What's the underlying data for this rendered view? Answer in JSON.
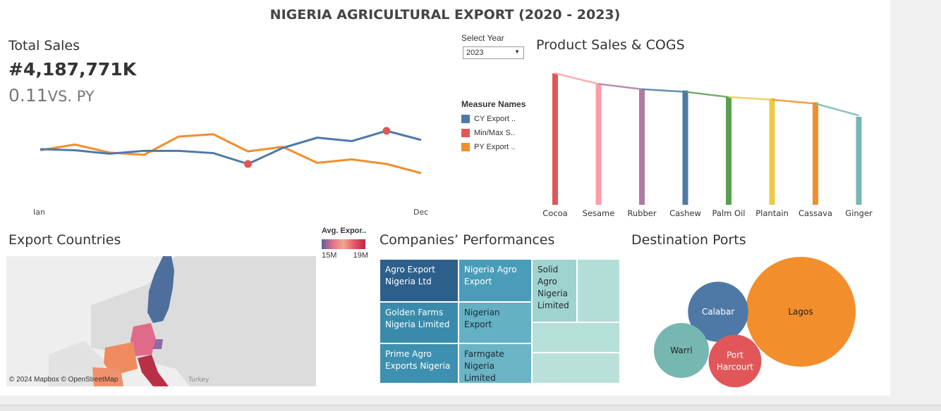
{
  "dashboard": {
    "title": "NIGERIA AGRICULTURAL EXPORT (2020 - 2023)"
  },
  "kpi": {
    "title": "Total Sales",
    "value": "#4,187,771K",
    "delta_value": "0.11",
    "delta_label": "VS. PY"
  },
  "year_filter": {
    "label": "Select Year",
    "selected": "2023"
  },
  "measure_legend": {
    "title": "Measure Names",
    "items": [
      {
        "label": "CY Export ..",
        "color": "#4e79a7"
      },
      {
        "label": "Min/Max S..",
        "color": "#e15759"
      },
      {
        "label": "PY Export ..",
        "color": "#f28e2b"
      }
    ]
  },
  "map_legend": {
    "title": "Avg. Expor..",
    "min_label": "15M",
    "max_label": "19M"
  },
  "sections": {
    "product_sales": "Product Sales & COGS",
    "export_countries": "Export Countries",
    "companies": "Companies’ Performances",
    "ports": "Destination Ports"
  },
  "map": {
    "attribution": "© 2024 Mapbox © OpenStreetMap",
    "label_turkey": "Turkey"
  },
  "chart_data": [
    {
      "type": "line",
      "x_labels": [
        "Jan",
        "Dec"
      ],
      "x": [
        1,
        2,
        3,
        4,
        5,
        6,
        7,
        8,
        9,
        10,
        11,
        12
      ],
      "series": [
        {
          "name": "CY Export ..",
          "color": "#4e79a7",
          "values": [
            4.5,
            4.4,
            4.1,
            4.35,
            4.35,
            4.15,
            3.2,
            4.6,
            5.5,
            5.2,
            6.1,
            5.3
          ]
        },
        {
          "name": "PY Export ..",
          "color": "#f28e2b",
          "values": [
            4.4,
            4.9,
            4.2,
            4.0,
            5.6,
            5.8,
            4.3,
            4.7,
            3.3,
            3.6,
            3.2,
            2.4
          ]
        }
      ],
      "min_max_points": [
        {
          "x": 7,
          "value": 3.2
        },
        {
          "x": 11,
          "value": 6.1
        }
      ],
      "ylim": [
        0,
        8
      ]
    },
    {
      "type": "bar",
      "categories": [
        "Cocoa",
        "Sesame",
        "Rubber",
        "Cashew",
        "Palm Oil",
        "Plantain",
        "Cassava",
        "Ginger"
      ],
      "values": [
        100,
        92,
        88,
        87,
        82,
        81,
        78,
        67
      ],
      "line_values": [
        100,
        92,
        88,
        86,
        82,
        80,
        77,
        68
      ],
      "colors": [
        "#e15759",
        "#ff9da7",
        "#b07aa1",
        "#4e79a7",
        "#59a14f",
        "#edc948",
        "#f28e2b",
        "#76b7b2"
      ],
      "ylim": [
        0,
        105
      ]
    },
    {
      "type": "table",
      "title": "Companies’ Performances",
      "items": [
        {
          "name": "Agro Export Nigeria Ltd",
          "label_lines": [
            "Agro Export",
            "Nigeria Ltd"
          ],
          "color": "#2d5f8b",
          "text_color": "#ffffff"
        },
        {
          "name": "Golden Farms Nigeria Limited",
          "label_lines": [
            "Golden Farms",
            "Nigeria Limited"
          ],
          "color": "#3a8bab",
          "text_color": "#ffffff"
        },
        {
          "name": "Prime Agro Exports Nigeria",
          "label_lines": [
            "Prime Agro",
            "Exports Nigeria"
          ],
          "color": "#3d90b0",
          "text_color": "#ffffff"
        },
        {
          "name": "Nigeria Agro Export",
          "label_lines": [
            "Nigeria Agro",
            "Export"
          ],
          "color": "#4a9cb8",
          "text_color": "#ffffff"
        },
        {
          "name": "Nigerian Export",
          "label_lines": [
            "Nigerian",
            "Export"
          ],
          "color": "#64b1c4",
          "text_color": "#1d2a33"
        },
        {
          "name": "Farmgate Nigeria Limited",
          "label_lines": [
            "Farmgate",
            "Nigeria Limited"
          ],
          "color": "#6ab4c5",
          "text_color": "#1d2a33"
        },
        {
          "name": "Solid Agro Nigeria Limited",
          "label_lines": [
            "Solid",
            "Agro",
            "Nigeria",
            "Limited"
          ],
          "color": "#9fd3cf",
          "text_color": "#1d2a33"
        },
        {
          "name": "",
          "label_lines": [],
          "color": "#b3ded7",
          "text_color": "#1d2a33"
        },
        {
          "name": "",
          "label_lines": [],
          "color": "#b6dfd8",
          "text_color": "#1d2a33"
        },
        {
          "name": "",
          "label_lines": [],
          "color": "#b9e1da",
          "text_color": "#1d2a33"
        }
      ]
    },
    {
      "type": "scatter",
      "title": "Destination Ports",
      "items": [
        {
          "name": "Lagos",
          "label_lines": [
            "Lagos"
          ],
          "color": "#f28e2b",
          "text_color": "#222222",
          "value": 100
        },
        {
          "name": "Calabar",
          "label_lines": [
            "Calabar"
          ],
          "color": "#4e79a7",
          "text_color": "#ffffff",
          "value": 30
        },
        {
          "name": "Warri",
          "label_lines": [
            "Warri"
          ],
          "color": "#76b7b2",
          "text_color": "#222222",
          "value": 25
        },
        {
          "name": "Port Harcourt",
          "label_lines": [
            "Port",
            "Harcourt"
          ],
          "color": "#e15759",
          "text_color": "#ffffff",
          "value": 23
        }
      ]
    }
  ]
}
